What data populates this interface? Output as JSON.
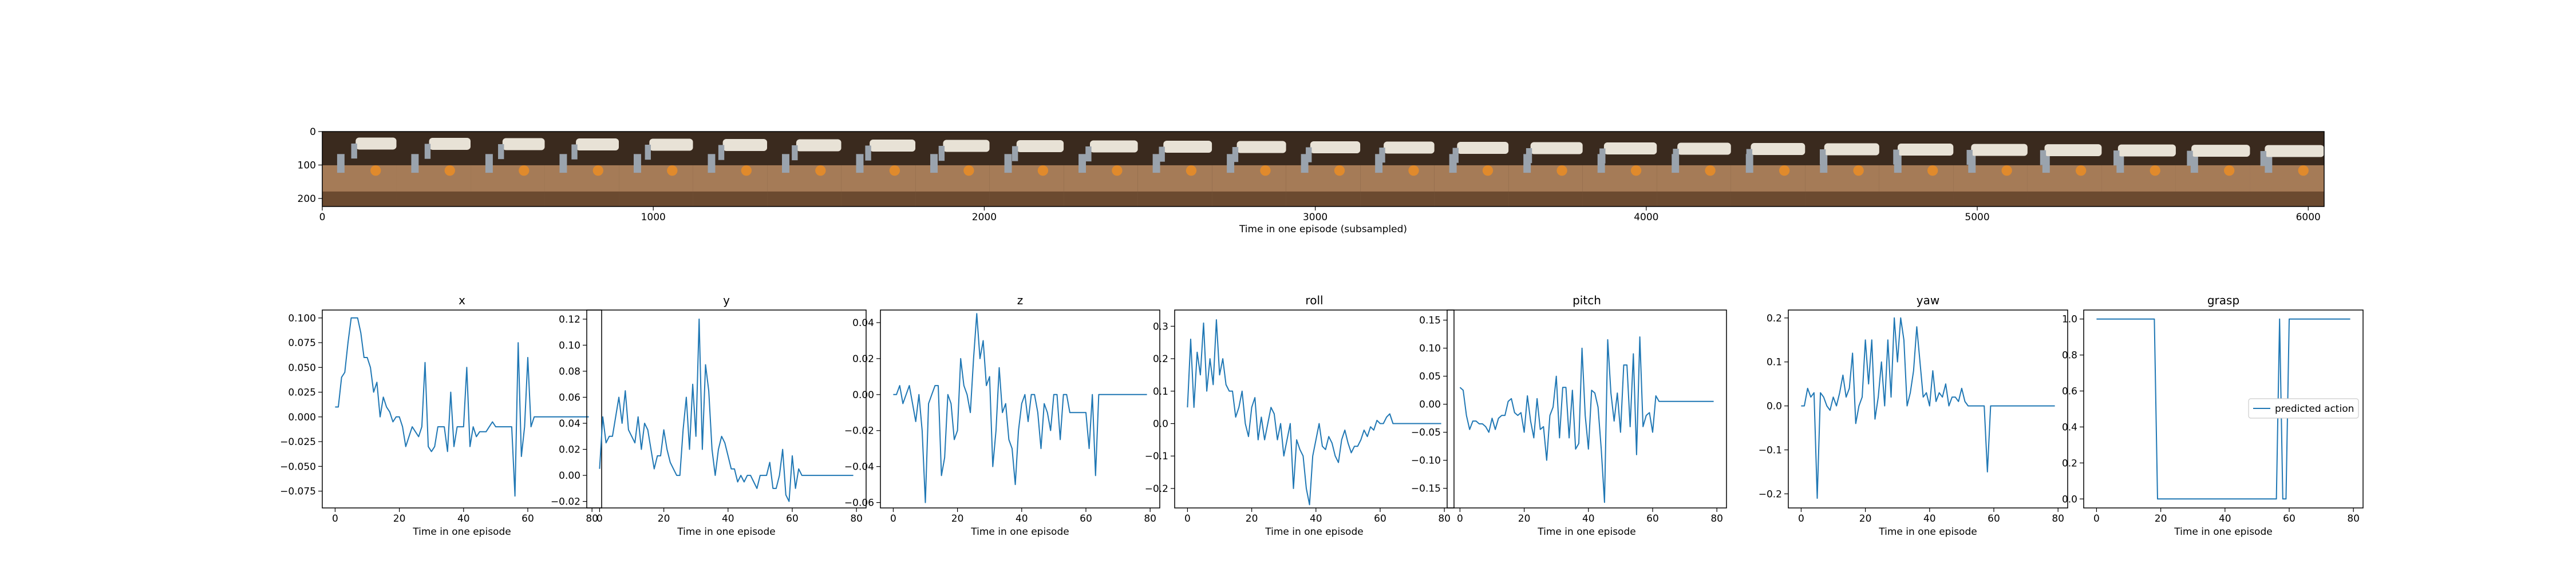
{
  "figure": {
    "background": "#ffffff",
    "line_color": "#1f77b4"
  },
  "image_strip": {
    "xlabel": "Time in one episode (subsampled)",
    "x_ticks": [
      0,
      1000,
      2000,
      3000,
      4000,
      5000,
      6000
    ],
    "y_ticks": [
      0,
      100,
      200
    ],
    "x_range": [
      0,
      6048
    ],
    "y_range": [
      0,
      224
    ],
    "frame_count": 27,
    "scene_colors": {
      "wall": "#3a2a1e",
      "table": "#a57b57",
      "table_edge": "#6b4a30",
      "robot_arm": "#e8e2d6",
      "object": "#e08a2c",
      "gripper": "#9aa3ad"
    }
  },
  "chart_data": [
    {
      "type": "line",
      "title": "x",
      "xlabel": "Time in one episode",
      "ylabel": "",
      "xlim": [
        -4,
        83
      ],
      "ylim": [
        -0.092,
        0.108
      ],
      "x_ticks": [
        0,
        20,
        40,
        60,
        80
      ],
      "y_ticks": [
        -0.075,
        -0.05,
        -0.025,
        0.0,
        0.025,
        0.05,
        0.075,
        0.1
      ],
      "y_tick_labels": [
        "−0.075",
        "−0.050",
        "−0.025",
        "0.000",
        "0.025",
        "0.050",
        "0.075",
        "0.100"
      ],
      "series": [
        {
          "values": [
            0.01,
            0.01,
            0.04,
            0.045,
            0.075,
            0.1,
            0.1,
            0.1,
            0.085,
            0.06,
            0.06,
            0.05,
            0.025,
            0.035,
            0.0,
            0.02,
            0.01,
            0.005,
            -0.005,
            0.0,
            0.0,
            -0.01,
            -0.03,
            -0.02,
            -0.01,
            -0.015,
            -0.02,
            -0.01,
            0.055,
            -0.03,
            -0.035,
            -0.03,
            -0.01,
            -0.01,
            -0.01,
            -0.035,
            0.025,
            -0.03,
            -0.01,
            -0.01,
            -0.01,
            0.05,
            -0.03,
            -0.01,
            -0.02,
            -0.015,
            -0.015,
            -0.015,
            -0.01,
            -0.005,
            -0.01,
            -0.01,
            -0.01,
            -0.01,
            -0.01,
            -0.01,
            -0.08,
            0.075,
            -0.04,
            -0.01,
            0.06,
            -0.01,
            0.0,
            0.0,
            0.0,
            0.0,
            0.0,
            0.0,
            0.0,
            0.0,
            0.0,
            0.0,
            0.0,
            0.0,
            0.0,
            0.0,
            0.0,
            0.0,
            0.0,
            0.0
          ]
        }
      ]
    },
    {
      "type": "line",
      "title": "y",
      "xlabel": "Time in one episode",
      "ylabel": "",
      "xlim": [
        -4,
        83
      ],
      "ylim": [
        -0.025,
        0.127
      ],
      "x_ticks": [
        0,
        20,
        40,
        60,
        80
      ],
      "y_ticks": [
        -0.02,
        0.0,
        0.02,
        0.04,
        0.06,
        0.08,
        0.1,
        0.12
      ],
      "y_tick_labels": [
        "−0.02",
        "0.00",
        "0.02",
        "0.04",
        "0.06",
        "0.08",
        "0.10",
        "0.12"
      ],
      "series": [
        {
          "values": [
            0.005,
            0.045,
            0.025,
            0.03,
            0.03,
            0.045,
            0.06,
            0.04,
            0.065,
            0.035,
            0.03,
            0.025,
            0.045,
            0.02,
            0.04,
            0.035,
            0.02,
            0.005,
            0.015,
            0.015,
            0.035,
            0.02,
            0.01,
            0.005,
            0.0,
            0.0,
            0.035,
            0.06,
            0.02,
            0.07,
            0.03,
            0.12,
            0.02,
            0.085,
            0.065,
            0.02,
            0.0,
            0.02,
            0.03,
            0.025,
            0.015,
            0.005,
            0.005,
            -0.005,
            0.0,
            -0.005,
            0.0,
            0.0,
            -0.005,
            -0.01,
            0.0,
            0.0,
            0.0,
            0.01,
            -0.01,
            -0.01,
            0.0,
            0.02,
            -0.015,
            -0.02,
            0.015,
            -0.01,
            0.005,
            0.0,
            0.0,
            0.0,
            0.0,
            0.0,
            0.0,
            0.0,
            0.0,
            0.0,
            0.0,
            0.0,
            0.0,
            0.0,
            0.0,
            0.0,
            0.0,
            0.0
          ]
        }
      ]
    },
    {
      "type": "line",
      "title": "z",
      "xlabel": "Time in one episode",
      "ylabel": "",
      "xlim": [
        -4,
        83
      ],
      "ylim": [
        -0.063,
        0.047
      ],
      "x_ticks": [
        0,
        20,
        40,
        60,
        80
      ],
      "y_ticks": [
        -0.06,
        -0.04,
        -0.02,
        0.0,
        0.02,
        0.04
      ],
      "y_tick_labels": [
        "−0.06",
        "−0.04",
        "−0.02",
        "0.00",
        "0.02",
        "0.04"
      ],
      "series": [
        {
          "values": [
            0.0,
            0.0,
            0.005,
            -0.005,
            0.0,
            0.005,
            -0.005,
            -0.015,
            0.0,
            -0.02,
            -0.06,
            -0.005,
            0.0,
            0.005,
            0.005,
            -0.045,
            -0.035,
            0.0,
            -0.005,
            -0.025,
            -0.02,
            0.02,
            0.005,
            0.0,
            -0.01,
            0.02,
            0.045,
            0.02,
            0.03,
            0.005,
            0.01,
            -0.04,
            -0.02,
            0.015,
            -0.01,
            -0.005,
            -0.025,
            -0.03,
            -0.05,
            -0.02,
            -0.005,
            0.0,
            -0.015,
            0.0,
            0.0,
            -0.01,
            -0.03,
            -0.005,
            -0.01,
            -0.02,
            0.0,
            0.0,
            -0.025,
            0.0,
            0.0,
            -0.01,
            -0.01,
            -0.01,
            -0.01,
            -0.01,
            -0.01,
            -0.03,
            0.0,
            -0.045,
            0.0,
            0.0,
            0.0,
            0.0,
            0.0,
            0.0,
            0.0,
            0.0,
            0.0,
            0.0,
            0.0,
            0.0,
            0.0,
            0.0,
            0.0,
            0.0
          ]
        }
      ]
    },
    {
      "type": "line",
      "title": "roll",
      "xlabel": "Time in one episode",
      "ylabel": "",
      "xlim": [
        -4,
        83
      ],
      "ylim": [
        -0.26,
        0.35
      ],
      "x_ticks": [
        0,
        20,
        40,
        60,
        80
      ],
      "y_ticks": [
        -0.2,
        -0.1,
        0.0,
        0.1,
        0.2,
        0.3
      ],
      "y_tick_labels": [
        "−0.2",
        "−0.1",
        "0.0",
        "0.1",
        "0.2",
        "0.3"
      ],
      "series": [
        {
          "values": [
            0.05,
            0.26,
            0.05,
            0.22,
            0.15,
            0.31,
            0.1,
            0.2,
            0.12,
            0.32,
            0.15,
            0.2,
            0.12,
            0.1,
            0.1,
            0.02,
            0.05,
            0.1,
            0.0,
            -0.04,
            0.05,
            0.08,
            -0.05,
            0.02,
            -0.05,
            0.0,
            0.05,
            0.03,
            -0.05,
            0.0,
            -0.1,
            -0.05,
            0.0,
            -0.2,
            -0.05,
            -0.08,
            -0.1,
            -0.2,
            -0.25,
            -0.1,
            -0.05,
            0.0,
            -0.07,
            -0.08,
            -0.04,
            -0.06,
            -0.1,
            -0.12,
            -0.05,
            -0.02,
            -0.06,
            -0.09,
            -0.07,
            -0.07,
            -0.05,
            -0.02,
            -0.04,
            -0.01,
            -0.02,
            0.01,
            0.0,
            0.0,
            0.02,
            0.03,
            0.0,
            0.0,
            0.0,
            0.0,
            0.0,
            0.0,
            0.0,
            0.0,
            0.0,
            0.0,
            0.0,
            0.0,
            0.0,
            0.0,
            0.0,
            0.0
          ]
        }
      ]
    },
    {
      "type": "line",
      "title": "pitch",
      "xlabel": "Time in one episode",
      "ylabel": "",
      "xlim": [
        -4,
        83
      ],
      "ylim": [
        -0.185,
        0.168
      ],
      "x_ticks": [
        0,
        20,
        40,
        60,
        80
      ],
      "y_ticks": [
        -0.15,
        -0.1,
        -0.05,
        0.0,
        0.05,
        0.1,
        0.15
      ],
      "y_tick_labels": [
        "−0.15",
        "−0.10",
        "−0.05",
        "0.00",
        "0.05",
        "0.10",
        "0.15"
      ],
      "series": [
        {
          "values": [
            0.03,
            0.025,
            -0.02,
            -0.045,
            -0.03,
            -0.03,
            -0.035,
            -0.035,
            -0.04,
            -0.05,
            -0.025,
            -0.045,
            -0.025,
            -0.02,
            -0.02,
            0.005,
            0.01,
            -0.015,
            -0.02,
            -0.015,
            -0.05,
            0.015,
            -0.03,
            -0.06,
            0.01,
            -0.045,
            -0.04,
            -0.1,
            -0.02,
            -0.005,
            0.05,
            -0.06,
            0.03,
            0.03,
            -0.06,
            0.025,
            -0.08,
            -0.07,
            0.1,
            -0.02,
            -0.08,
            0.025,
            0.02,
            -0.005,
            -0.08,
            -0.175,
            0.115,
            0.02,
            -0.03,
            0.02,
            -0.05,
            0.07,
            0.07,
            -0.04,
            0.09,
            -0.09,
            0.12,
            -0.04,
            -0.02,
            -0.015,
            -0.05,
            0.015,
            0.005,
            0.005,
            0.005,
            0.005,
            0.005,
            0.005,
            0.005,
            0.005,
            0.005,
            0.005,
            0.005,
            0.005,
            0.005,
            0.005,
            0.005,
            0.005,
            0.005,
            0.005
          ]
        }
      ]
    },
    {
      "type": "line",
      "title": "yaw",
      "xlabel": "Time in one episode",
      "ylabel": "",
      "xlim": [
        -4,
        83
      ],
      "ylim": [
        -0.232,
        0.218
      ],
      "x_ticks": [
        0,
        20,
        40,
        60,
        80
      ],
      "y_ticks": [
        -0.2,
        -0.1,
        0.0,
        0.1,
        0.2
      ],
      "y_tick_labels": [
        "−0.2",
        "−0.1",
        "0.0",
        "0.1",
        "0.2"
      ],
      "series": [
        {
          "values": [
            0.0,
            0.0,
            0.04,
            0.02,
            0.03,
            -0.21,
            0.03,
            0.02,
            0.0,
            -0.01,
            0.02,
            0.0,
            0.03,
            0.07,
            0.02,
            0.04,
            0.12,
            -0.04,
            0.0,
            0.02,
            0.15,
            0.05,
            0.15,
            -0.03,
            0.02,
            0.1,
            0.0,
            0.15,
            0.02,
            0.2,
            0.1,
            0.2,
            0.15,
            0.0,
            0.03,
            0.08,
            0.18,
            0.1,
            0.02,
            0.03,
            0.0,
            0.08,
            0.01,
            0.03,
            0.02,
            0.05,
            0.0,
            0.02,
            0.02,
            0.01,
            0.04,
            0.01,
            0.0,
            0.0,
            0.0,
            0.0,
            0.0,
            0.0,
            -0.15,
            0.0,
            0.0,
            0.0,
            0.0,
            0.0,
            0.0,
            0.0,
            0.0,
            0.0,
            0.0,
            0.0,
            0.0,
            0.0,
            0.0,
            0.0,
            0.0,
            0.0,
            0.0,
            0.0,
            0.0,
            0.0
          ]
        }
      ]
    },
    {
      "type": "line",
      "title": "grasp",
      "xlabel": "Time in one episode",
      "ylabel": "",
      "xlim": [
        -4,
        83
      ],
      "ylim": [
        -0.05,
        1.05
      ],
      "x_ticks": [
        0,
        20,
        40,
        60,
        80
      ],
      "y_ticks": [
        0.0,
        0.2,
        0.4,
        0.6,
        0.8,
        1.0
      ],
      "y_tick_labels": [
        "0.0",
        "0.2",
        "0.4",
        "0.6",
        "0.8",
        "1.0"
      ],
      "legend": {
        "label": "predicted action",
        "placement": "center-right"
      },
      "series": [
        {
          "name": "predicted action",
          "values": [
            1,
            1,
            1,
            1,
            1,
            1,
            1,
            1,
            1,
            1,
            1,
            1,
            1,
            1,
            1,
            1,
            1,
            1,
            1,
            0,
            0,
            0,
            0,
            0,
            0,
            0,
            0,
            0,
            0,
            0,
            0,
            0,
            0,
            0,
            0,
            0,
            0,
            0,
            0,
            0,
            0,
            0,
            0,
            0,
            0,
            0,
            0,
            0,
            0,
            0,
            0,
            0,
            0,
            0,
            0,
            0,
            0,
            1,
            0,
            0,
            1,
            1,
            1,
            1,
            1,
            1,
            1,
            1,
            1,
            1,
            1,
            1,
            1,
            1,
            1,
            1,
            1,
            1,
            1,
            1
          ]
        }
      ]
    }
  ]
}
